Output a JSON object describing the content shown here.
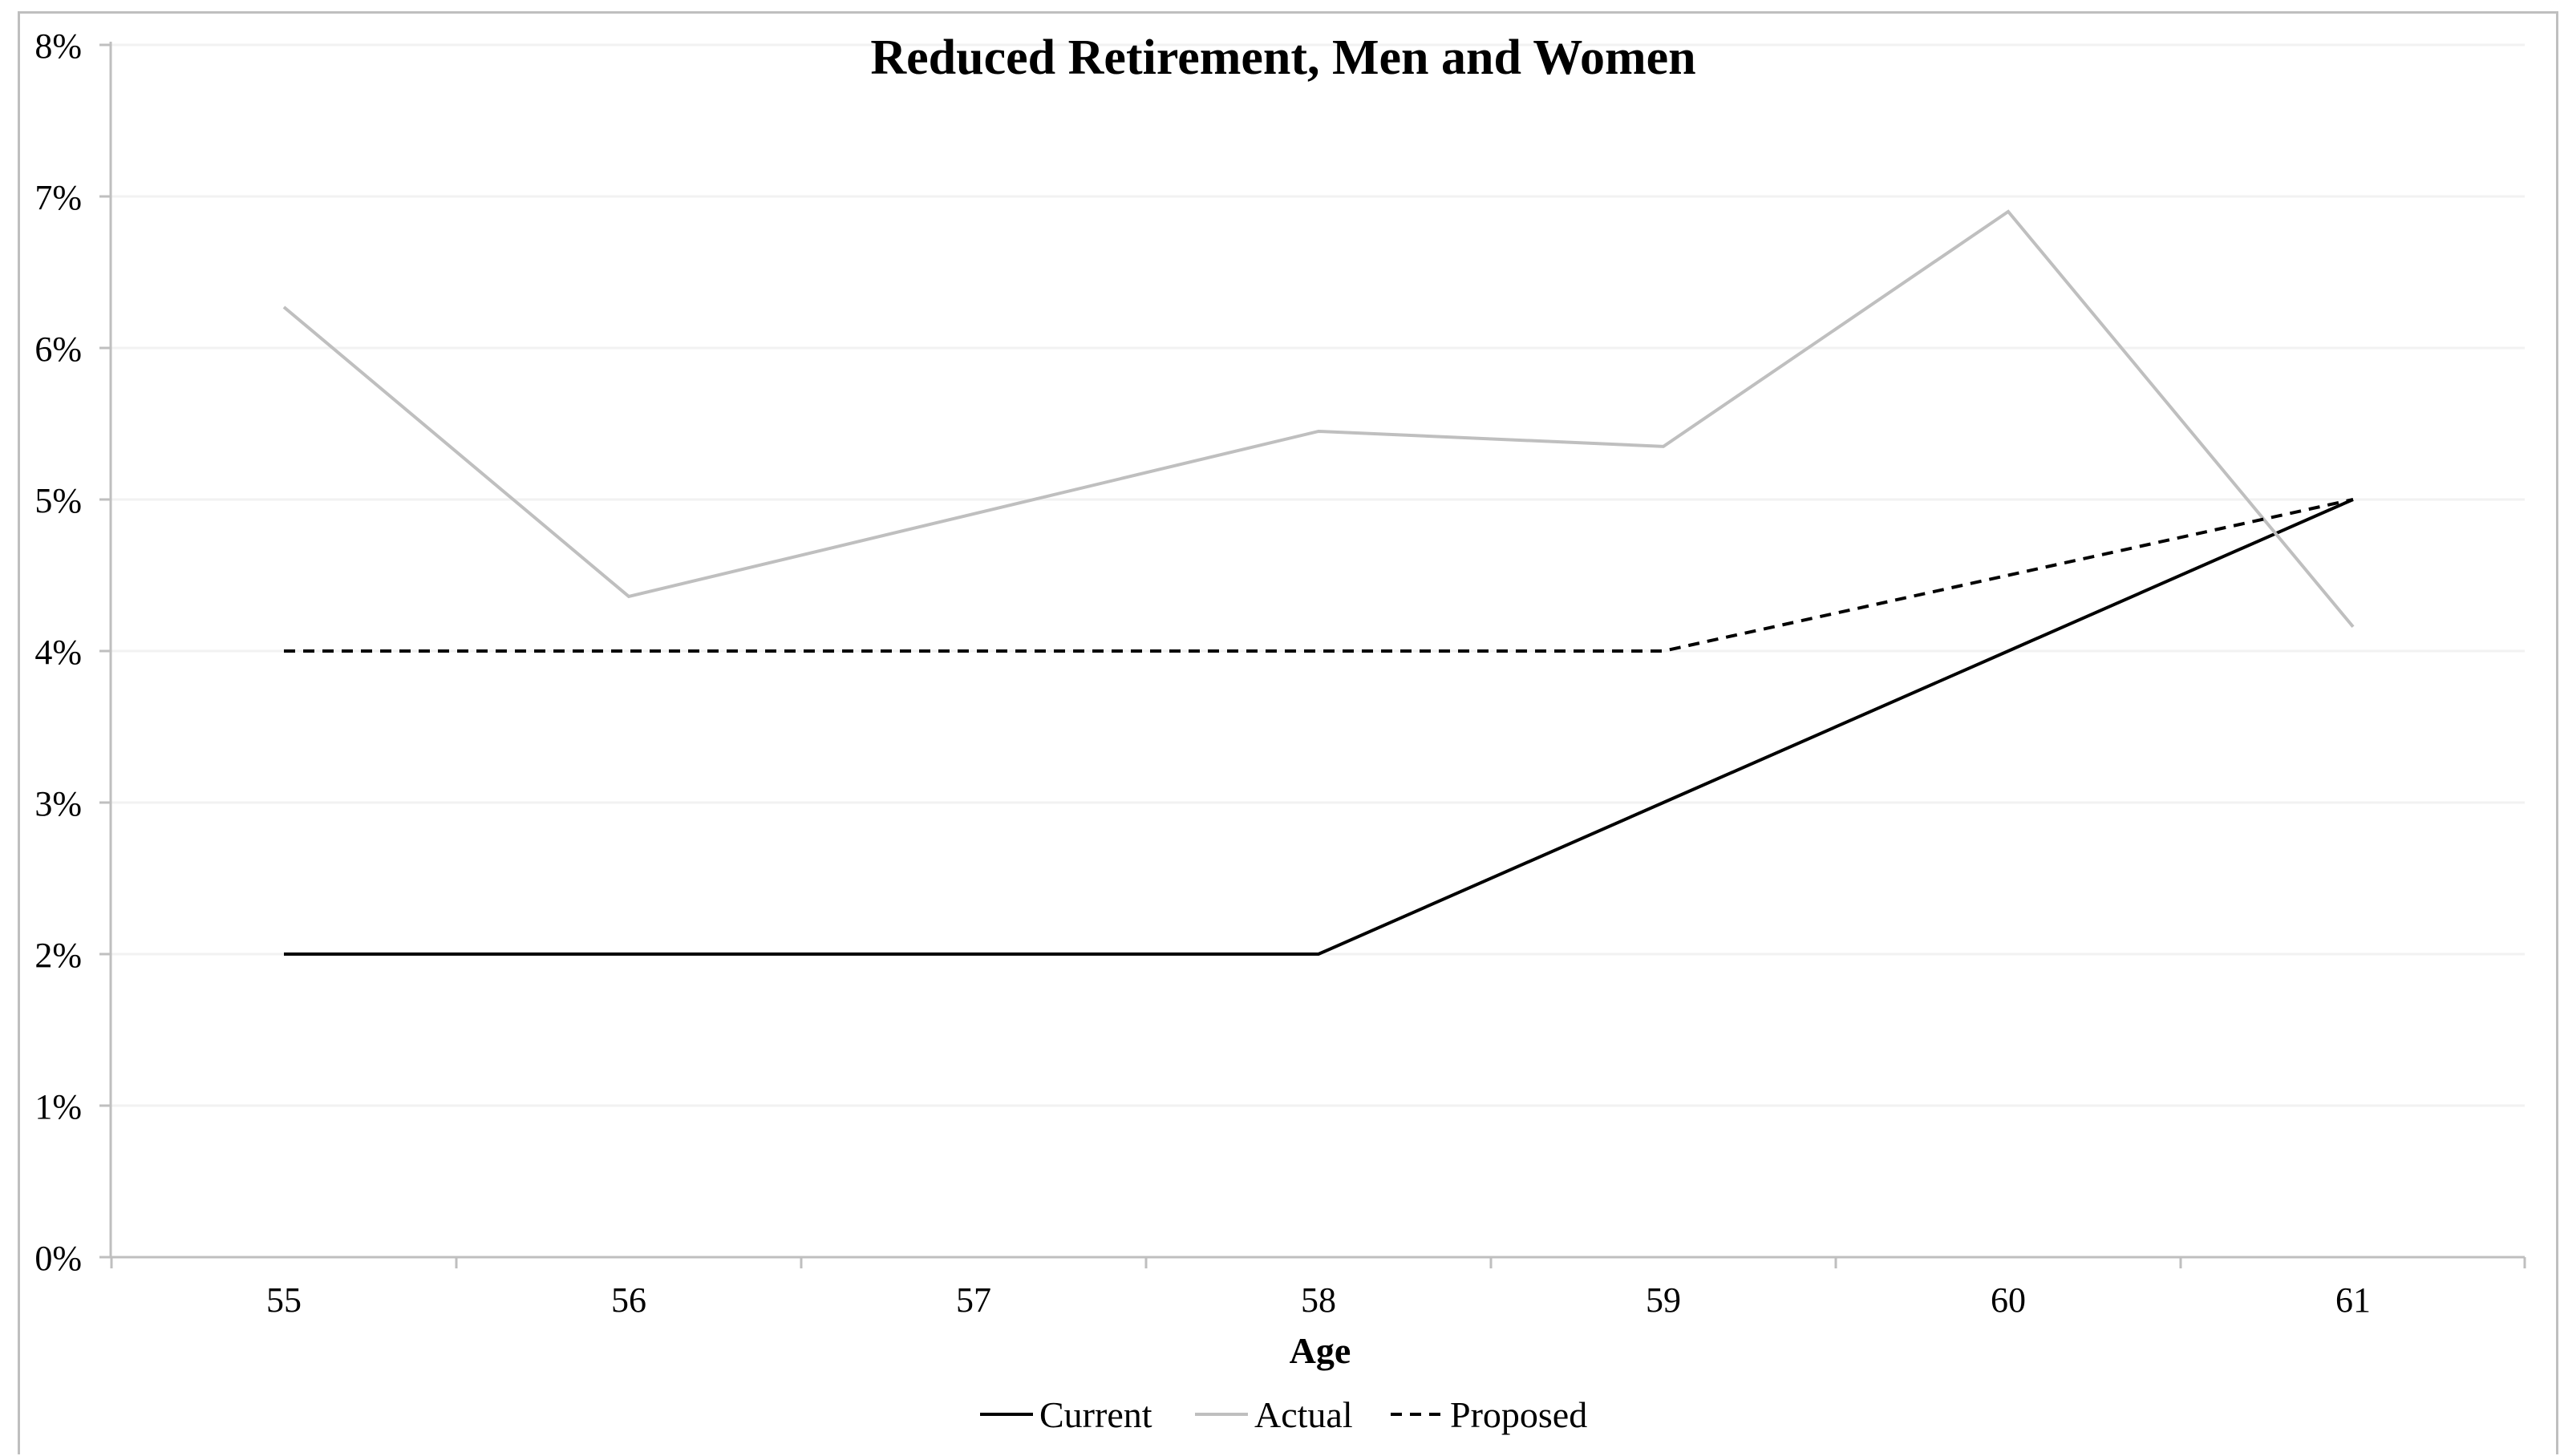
{
  "chart_data": {
    "type": "line",
    "title": "Reduced Retirement, Men and Women",
    "xlabel": "Age",
    "ylabel": "",
    "categories": [
      "55",
      "56",
      "57",
      "58",
      "59",
      "60",
      "61"
    ],
    "y_tick_labels": [
      "0%",
      "1%",
      "2%",
      "3%",
      "4%",
      "5%",
      "6%",
      "7%",
      "8%"
    ],
    "ylim": [
      0,
      8
    ],
    "grid": true,
    "legend_position": "bottom",
    "series": [
      {
        "name": "Current",
        "color": "#000000",
        "style": "solid",
        "values": [
          2.0,
          2.0,
          2.0,
          2.0,
          3.0,
          4.0,
          5.0
        ]
      },
      {
        "name": "Actual",
        "color": "#bfbfbf",
        "style": "solid",
        "values": [
          6.27,
          4.36,
          null,
          5.45,
          5.35,
          6.9,
          4.16
        ]
      },
      {
        "name": "Proposed",
        "color": "#000000",
        "style": "dashed",
        "values": [
          4.0,
          4.0,
          4.0,
          4.0,
          4.0,
          4.5,
          5.0
        ]
      }
    ]
  }
}
